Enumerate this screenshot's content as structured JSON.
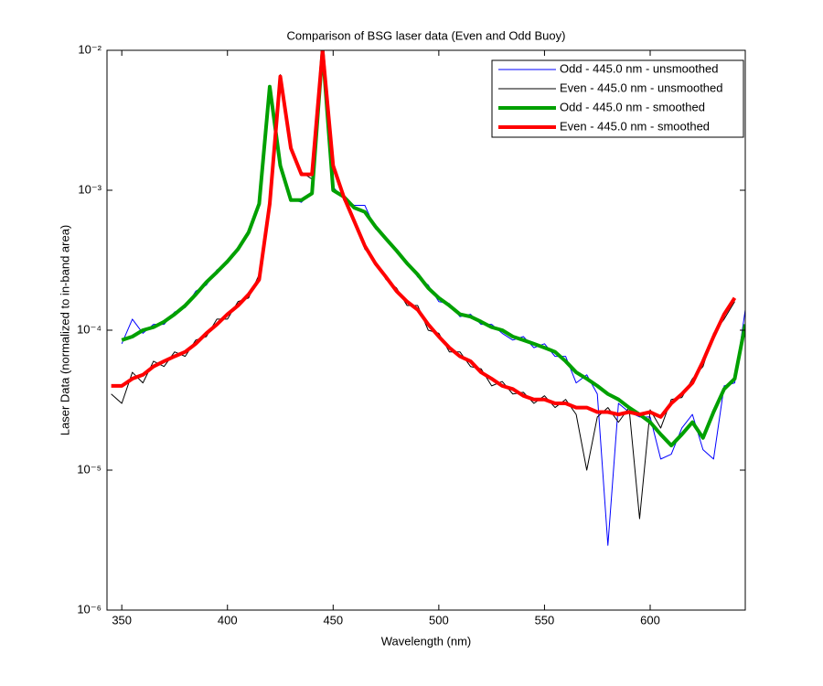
{
  "chart_data": {
    "type": "line",
    "title": "Comparison of BSG laser data (Even and Odd Buoy)",
    "xlabel": "Wavelength (nm)",
    "ylabel": "Laser Data (normalized to in-band area)",
    "yscale": "log",
    "legend": "northeast",
    "xlim": [
      343,
      645
    ],
    "ylim": [
      1e-06,
      0.01
    ],
    "xticks": [
      350,
      400,
      450,
      500,
      550,
      600
    ],
    "yticks": [
      {
        "value": 1e-06,
        "label": "10⁻⁶"
      },
      {
        "value": 1e-05,
        "label": "10⁻⁵"
      },
      {
        "value": 0.0001,
        "label": "10⁻⁴"
      },
      {
        "value": 0.001,
        "label": "10⁻³"
      },
      {
        "value": 0.01,
        "label": "10⁻²"
      }
    ],
    "x": [
      345,
      350,
      355,
      360,
      365,
      370,
      375,
      380,
      385,
      390,
      395,
      400,
      405,
      410,
      415,
      420,
      425,
      430,
      435,
      440,
      445,
      450,
      455,
      460,
      465,
      470,
      475,
      480,
      485,
      490,
      495,
      500,
      505,
      510,
      515,
      520,
      525,
      530,
      535,
      540,
      545,
      550,
      555,
      560,
      565,
      570,
      575,
      580,
      585,
      590,
      595,
      600,
      605,
      610,
      615,
      620,
      625,
      630,
      635,
      640,
      645
    ],
    "series": [
      {
        "name": "Odd - 445.0 nm - unsmoothed",
        "color": "#0000ff",
        "linewidth": 1,
        "values": [
          null,
          8e-05,
          0.00012,
          9.5e-05,
          0.00011,
          0.00011,
          0.000135,
          0.000145,
          0.00019,
          0.00021,
          0.00027,
          0.0003,
          0.00039,
          0.00048,
          0.00085,
          0.0056,
          0.0014,
          0.00087,
          0.00082,
          0.00098,
          0.01,
          0.00105,
          0.00088,
          0.00078,
          0.00078,
          0.00053,
          0.00046,
          0.00036,
          0.00031,
          0.00024,
          0.00021,
          0.00016,
          0.000155,
          0.000125,
          0.00013,
          0.00011,
          0.00011,
          9.5e-05,
          8.5e-05,
          9e-05,
          7.5e-05,
          8e-05,
          6.5e-05,
          6.5e-05,
          4.2e-05,
          4.8e-05,
          3.5e-05,
          2.9e-06,
          3e-05,
          2.6e-05,
          2.4e-05,
          2.4e-05,
          1.2e-05,
          1.3e-05,
          2e-05,
          2.5e-05,
          1.4e-05,
          1.2e-05,
          4e-05,
          4.2e-05,
          0.00014
        ]
      },
      {
        "name": "Even - 445.0 nm - unsmoothed",
        "color": "#000000",
        "linewidth": 1,
        "values": [
          3.5e-05,
          3e-05,
          5e-05,
          4.2e-05,
          6e-05,
          5.5e-05,
          7e-05,
          6.5e-05,
          8.5e-05,
          9e-05,
          0.00012,
          0.00012,
          0.00016,
          0.00017,
          0.00025,
          0.00075,
          0.0067,
          0.0019,
          0.00135,
          0.0012,
          0.01,
          0.0016,
          0.00085,
          0.00063,
          0.00038,
          0.00031,
          0.00023,
          0.0002,
          0.00015,
          0.00015,
          0.0001,
          9.5e-05,
          7e-05,
          7e-05,
          5.5e-05,
          5.3e-05,
          4e-05,
          4.3e-05,
          3.5e-05,
          3.6e-05,
          3e-05,
          3.4e-05,
          2.8e-05,
          3.2e-05,
          2.5e-05,
          1e-05,
          2.4e-05,
          2.8e-05,
          2.2e-05,
          2.8e-05,
          4.5e-06,
          2.7e-05,
          2e-05,
          3.2e-05,
          3.3e-05,
          4.5e-05,
          5.5e-05,
          9.5e-05,
          0.00012,
          0.00016,
          null
        ]
      },
      {
        "name": "Odd - 445.0 nm - smoothed",
        "color": "#00a000",
        "linewidth": 4,
        "values": [
          null,
          8.5e-05,
          9e-05,
          0.0001,
          0.000105,
          0.000115,
          0.00013,
          0.00015,
          0.00018,
          0.00022,
          0.00026,
          0.00031,
          0.00038,
          0.0005,
          0.0008,
          0.0055,
          0.0015,
          0.00085,
          0.00085,
          0.00095,
          0.01,
          0.001,
          0.0009,
          0.00075,
          0.0007,
          0.00055,
          0.00045,
          0.00037,
          0.0003,
          0.00025,
          0.0002,
          0.00017,
          0.00015,
          0.00013,
          0.000125,
          0.000115,
          0.000105,
          0.0001,
          9e-05,
          8.5e-05,
          8e-05,
          7.5e-05,
          7e-05,
          6e-05,
          5e-05,
          4.5e-05,
          4e-05,
          3.5e-05,
          3.2e-05,
          2.8e-05,
          2.5e-05,
          2.2e-05,
          1.8e-05,
          1.5e-05,
          1.8e-05,
          2.2e-05,
          1.7e-05,
          2.6e-05,
          3.8e-05,
          4.5e-05,
          0.00011
        ]
      },
      {
        "name": "Even - 445.0 nm - smoothed",
        "color": "#ff0000",
        "linewidth": 4,
        "values": [
          4e-05,
          4e-05,
          4.5e-05,
          4.8e-05,
          5.5e-05,
          6e-05,
          6.5e-05,
          7e-05,
          8e-05,
          9.5e-05,
          0.00011,
          0.00013,
          0.00015,
          0.00018,
          0.00023,
          0.0008,
          0.0065,
          0.002,
          0.0013,
          0.0013,
          0.01,
          0.0015,
          0.0009,
          0.0006,
          0.0004,
          0.0003,
          0.00024,
          0.00019,
          0.00016,
          0.00014,
          0.00011,
          9e-05,
          7.5e-05,
          6.5e-05,
          6e-05,
          5e-05,
          4.5e-05,
          4e-05,
          3.8e-05,
          3.4e-05,
          3.2e-05,
          3.2e-05,
          3e-05,
          3e-05,
          2.8e-05,
          2.8e-05,
          2.6e-05,
          2.6e-05,
          2.5e-05,
          2.6e-05,
          2.5e-05,
          2.6e-05,
          2.4e-05,
          3e-05,
          3.5e-05,
          4.2e-05,
          6e-05,
          9e-05,
          0.00013,
          0.00017,
          null
        ]
      }
    ]
  }
}
